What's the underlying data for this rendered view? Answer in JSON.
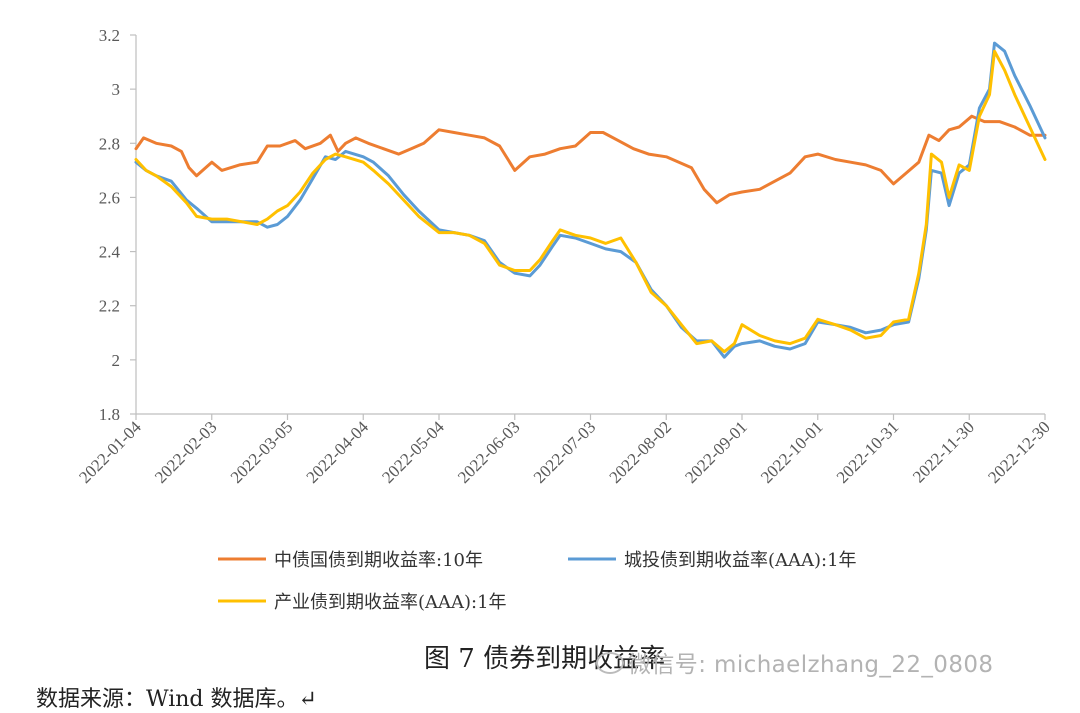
{
  "chart_data": {
    "type": "line",
    "y_ticks": [
      "3.2",
      "3",
      "2.8",
      "2.6",
      "2.4",
      "2.2",
      "2",
      "1.8"
    ],
    "ylim": [
      1.8,
      3.2
    ],
    "x_ticks": [
      "2022-01-04",
      "2022-02-03",
      "2022-03-05",
      "2022-04-04",
      "2022-05-04",
      "2022-06-03",
      "2022-07-03",
      "2022-08-02",
      "2022-09-01",
      "2022-10-01",
      "2022-10-31",
      "2022-11-30",
      "2022-12-30"
    ],
    "grid": false,
    "legend_position": "bottom",
    "series": [
      {
        "name": "中债国债到期收益率:10年",
        "color": "#ED7D31",
        "points": [
          [
            "2022-01-04",
            2.78
          ],
          [
            "2022-01-07",
            2.82
          ],
          [
            "2022-01-12",
            2.8
          ],
          [
            "2022-01-18",
            2.79
          ],
          [
            "2022-01-22",
            2.77
          ],
          [
            "2022-01-25",
            2.71
          ],
          [
            "2022-01-28",
            2.68
          ],
          [
            "2022-02-03",
            2.73
          ],
          [
            "2022-02-07",
            2.7
          ],
          [
            "2022-02-14",
            2.72
          ],
          [
            "2022-02-21",
            2.73
          ],
          [
            "2022-02-25",
            2.79
          ],
          [
            "2022-03-02",
            2.79
          ],
          [
            "2022-03-08",
            2.81
          ],
          [
            "2022-03-12",
            2.78
          ],
          [
            "2022-03-18",
            2.8
          ],
          [
            "2022-03-22",
            2.83
          ],
          [
            "2022-03-25",
            2.77
          ],
          [
            "2022-03-28",
            2.8
          ],
          [
            "2022-04-01",
            2.82
          ],
          [
            "2022-04-06",
            2.8
          ],
          [
            "2022-04-12",
            2.78
          ],
          [
            "2022-04-18",
            2.76
          ],
          [
            "2022-04-23",
            2.78
          ],
          [
            "2022-04-28",
            2.8
          ],
          [
            "2022-05-04",
            2.85
          ],
          [
            "2022-05-10",
            2.84
          ],
          [
            "2022-05-16",
            2.83
          ],
          [
            "2022-05-22",
            2.82
          ],
          [
            "2022-05-28",
            2.79
          ],
          [
            "2022-06-03",
            2.7
          ],
          [
            "2022-06-09",
            2.75
          ],
          [
            "2022-06-15",
            2.76
          ],
          [
            "2022-06-21",
            2.78
          ],
          [
            "2022-06-27",
            2.79
          ],
          [
            "2022-07-03",
            2.84
          ],
          [
            "2022-07-08",
            2.84
          ],
          [
            "2022-07-14",
            2.81
          ],
          [
            "2022-07-20",
            2.78
          ],
          [
            "2022-07-26",
            2.76
          ],
          [
            "2022-08-02",
            2.75
          ],
          [
            "2022-08-07",
            2.73
          ],
          [
            "2022-08-12",
            2.71
          ],
          [
            "2022-08-17",
            2.63
          ],
          [
            "2022-08-22",
            2.58
          ],
          [
            "2022-08-27",
            2.61
          ],
          [
            "2022-09-01",
            2.62
          ],
          [
            "2022-09-08",
            2.63
          ],
          [
            "2022-09-14",
            2.66
          ],
          [
            "2022-09-20",
            2.69
          ],
          [
            "2022-09-26",
            2.75
          ],
          [
            "2022-10-01",
            2.76
          ],
          [
            "2022-10-08",
            2.74
          ],
          [
            "2022-10-14",
            2.73
          ],
          [
            "2022-10-20",
            2.72
          ],
          [
            "2022-10-26",
            2.7
          ],
          [
            "2022-10-31",
            2.65
          ],
          [
            "2022-11-05",
            2.69
          ],
          [
            "2022-11-10",
            2.73
          ],
          [
            "2022-11-14",
            2.83
          ],
          [
            "2022-11-18",
            2.81
          ],
          [
            "2022-11-22",
            2.85
          ],
          [
            "2022-11-26",
            2.86
          ],
          [
            "2022-12-01",
            2.9
          ],
          [
            "2022-12-06",
            2.88
          ],
          [
            "2022-12-12",
            2.88
          ],
          [
            "2022-12-18",
            2.86
          ],
          [
            "2022-12-24",
            2.83
          ],
          [
            "2022-12-30",
            2.83
          ]
        ]
      },
      {
        "name": "城投债到期收益率(AAA):1年",
        "color": "#5B9BD5",
        "points": [
          [
            "2022-01-04",
            2.73
          ],
          [
            "2022-01-08",
            2.7
          ],
          [
            "2022-01-12",
            2.68
          ],
          [
            "2022-01-18",
            2.66
          ],
          [
            "2022-01-24",
            2.59
          ],
          [
            "2022-01-28",
            2.56
          ],
          [
            "2022-02-03",
            2.51
          ],
          [
            "2022-02-09",
            2.51
          ],
          [
            "2022-02-15",
            2.51
          ],
          [
            "2022-02-21",
            2.51
          ],
          [
            "2022-02-25",
            2.49
          ],
          [
            "2022-03-01",
            2.5
          ],
          [
            "2022-03-05",
            2.53
          ],
          [
            "2022-03-10",
            2.59
          ],
          [
            "2022-03-15",
            2.67
          ],
          [
            "2022-03-20",
            2.75
          ],
          [
            "2022-03-24",
            2.74
          ],
          [
            "2022-03-28",
            2.77
          ],
          [
            "2022-04-04",
            2.75
          ],
          [
            "2022-04-08",
            2.73
          ],
          [
            "2022-04-14",
            2.68
          ],
          [
            "2022-04-20",
            2.61
          ],
          [
            "2022-04-26",
            2.55
          ],
          [
            "2022-05-04",
            2.48
          ],
          [
            "2022-05-10",
            2.47
          ],
          [
            "2022-05-16",
            2.46
          ],
          [
            "2022-05-22",
            2.44
          ],
          [
            "2022-05-28",
            2.36
          ],
          [
            "2022-06-03",
            2.32
          ],
          [
            "2022-06-09",
            2.31
          ],
          [
            "2022-06-13",
            2.35
          ],
          [
            "2022-06-18",
            2.42
          ],
          [
            "2022-06-21",
            2.46
          ],
          [
            "2022-06-27",
            2.45
          ],
          [
            "2022-07-03",
            2.43
          ],
          [
            "2022-07-09",
            2.41
          ],
          [
            "2022-07-15",
            2.4
          ],
          [
            "2022-07-21",
            2.36
          ],
          [
            "2022-07-27",
            2.26
          ],
          [
            "2022-08-02",
            2.2
          ],
          [
            "2022-08-08",
            2.12
          ],
          [
            "2022-08-14",
            2.07
          ],
          [
            "2022-08-20",
            2.07
          ],
          [
            "2022-08-25",
            2.01
          ],
          [
            "2022-08-29",
            2.05
          ],
          [
            "2022-09-01",
            2.06
          ],
          [
            "2022-09-08",
            2.07
          ],
          [
            "2022-09-14",
            2.05
          ],
          [
            "2022-09-20",
            2.04
          ],
          [
            "2022-09-26",
            2.06
          ],
          [
            "2022-10-01",
            2.14
          ],
          [
            "2022-10-08",
            2.13
          ],
          [
            "2022-10-14",
            2.12
          ],
          [
            "2022-10-20",
            2.1
          ],
          [
            "2022-10-26",
            2.11
          ],
          [
            "2022-10-31",
            2.13
          ],
          [
            "2022-11-06",
            2.14
          ],
          [
            "2022-11-10",
            2.3
          ],
          [
            "2022-11-13",
            2.48
          ],
          [
            "2022-11-15",
            2.7
          ],
          [
            "2022-11-19",
            2.69
          ],
          [
            "2022-11-22",
            2.57
          ],
          [
            "2022-11-26",
            2.69
          ],
          [
            "2022-11-30",
            2.72
          ],
          [
            "2022-12-04",
            2.93
          ],
          [
            "2022-12-08",
            3.0
          ],
          [
            "2022-12-10",
            3.17
          ],
          [
            "2022-12-14",
            3.14
          ],
          [
            "2022-12-18",
            3.05
          ],
          [
            "2022-12-24",
            2.94
          ],
          [
            "2022-12-30",
            2.82
          ]
        ]
      },
      {
        "name": "产业债到期收益率(AAA):1年",
        "color": "#FFC000",
        "points": [
          [
            "2022-01-04",
            2.74
          ],
          [
            "2022-01-08",
            2.7
          ],
          [
            "2022-01-12",
            2.68
          ],
          [
            "2022-01-18",
            2.64
          ],
          [
            "2022-01-24",
            2.58
          ],
          [
            "2022-01-28",
            2.53
          ],
          [
            "2022-02-03",
            2.52
          ],
          [
            "2022-02-09",
            2.52
          ],
          [
            "2022-02-15",
            2.51
          ],
          [
            "2022-02-21",
            2.5
          ],
          [
            "2022-02-25",
            2.52
          ],
          [
            "2022-03-01",
            2.55
          ],
          [
            "2022-03-05",
            2.57
          ],
          [
            "2022-03-10",
            2.62
          ],
          [
            "2022-03-15",
            2.69
          ],
          [
            "2022-03-20",
            2.74
          ],
          [
            "2022-03-24",
            2.76
          ],
          [
            "2022-03-28",
            2.75
          ],
          [
            "2022-04-04",
            2.73
          ],
          [
            "2022-04-08",
            2.7
          ],
          [
            "2022-04-14",
            2.65
          ],
          [
            "2022-04-20",
            2.59
          ],
          [
            "2022-04-26",
            2.53
          ],
          [
            "2022-05-04",
            2.47
          ],
          [
            "2022-05-10",
            2.47
          ],
          [
            "2022-05-16",
            2.46
          ],
          [
            "2022-05-22",
            2.43
          ],
          [
            "2022-05-28",
            2.35
          ],
          [
            "2022-06-03",
            2.33
          ],
          [
            "2022-06-09",
            2.33
          ],
          [
            "2022-06-13",
            2.37
          ],
          [
            "2022-06-18",
            2.44
          ],
          [
            "2022-06-21",
            2.48
          ],
          [
            "2022-06-27",
            2.46
          ],
          [
            "2022-07-03",
            2.45
          ],
          [
            "2022-07-09",
            2.43
          ],
          [
            "2022-07-15",
            2.45
          ],
          [
            "2022-07-21",
            2.36
          ],
          [
            "2022-07-27",
            2.25
          ],
          [
            "2022-08-02",
            2.2
          ],
          [
            "2022-08-08",
            2.13
          ],
          [
            "2022-08-14",
            2.06
          ],
          [
            "2022-08-20",
            2.07
          ],
          [
            "2022-08-25",
            2.03
          ],
          [
            "2022-08-29",
            2.06
          ],
          [
            "2022-09-01",
            2.13
          ],
          [
            "2022-09-08",
            2.09
          ],
          [
            "2022-09-14",
            2.07
          ],
          [
            "2022-09-20",
            2.06
          ],
          [
            "2022-09-26",
            2.08
          ],
          [
            "2022-10-01",
            2.15
          ],
          [
            "2022-10-08",
            2.13
          ],
          [
            "2022-10-14",
            2.11
          ],
          [
            "2022-10-20",
            2.08
          ],
          [
            "2022-10-26",
            2.09
          ],
          [
            "2022-10-31",
            2.14
          ],
          [
            "2022-11-06",
            2.15
          ],
          [
            "2022-11-10",
            2.32
          ],
          [
            "2022-11-13",
            2.5
          ],
          [
            "2022-11-15",
            2.76
          ],
          [
            "2022-11-19",
            2.73
          ],
          [
            "2022-11-22",
            2.6
          ],
          [
            "2022-11-26",
            2.72
          ],
          [
            "2022-11-30",
            2.7
          ],
          [
            "2022-12-04",
            2.9
          ],
          [
            "2022-12-08",
            2.98
          ],
          [
            "2022-12-10",
            3.14
          ],
          [
            "2022-12-14",
            3.07
          ],
          [
            "2022-12-18",
            2.98
          ],
          [
            "2022-12-24",
            2.86
          ],
          [
            "2022-12-30",
            2.74
          ]
        ]
      }
    ]
  },
  "caption": "图 7  债券到期收益率",
  "watermark": "微信号: michaelzhang_22_0808",
  "source_note": "数据来源：Wind 数据库。↵"
}
